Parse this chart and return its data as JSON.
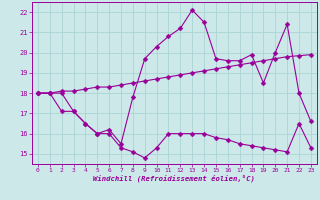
{
  "xlabel": "Windchill (Refroidissement éolien,°C)",
  "bg_color": "#cce8e8",
  "line_color": "#990099",
  "xlim": [
    -0.5,
    23.5
  ],
  "ylim": [
    14.5,
    22.5
  ],
  "xticks": [
    0,
    1,
    2,
    3,
    4,
    5,
    6,
    7,
    8,
    9,
    10,
    11,
    12,
    13,
    14,
    15,
    16,
    17,
    18,
    19,
    20,
    21,
    22,
    23
  ],
  "yticks": [
    15,
    16,
    17,
    18,
    19,
    20,
    21,
    22
  ],
  "grid_color": "#aad4d4",
  "s1_x": [
    0,
    1,
    2,
    3,
    4,
    5,
    6,
    7,
    8,
    9,
    10,
    11,
    12,
    13,
    14,
    15,
    16,
    17,
    18,
    19,
    20,
    21,
    22,
    23
  ],
  "s1_y": [
    18.0,
    18.0,
    18.0,
    17.1,
    16.5,
    16.0,
    16.0,
    15.3,
    15.1,
    14.8,
    15.3,
    16.0,
    16.0,
    16.0,
    16.0,
    15.8,
    15.7,
    15.5,
    15.4,
    15.3,
    15.2,
    15.1,
    16.5,
    15.3
  ],
  "s2_x": [
    0,
    1,
    2,
    3,
    4,
    5,
    6,
    7,
    8,
    9,
    10,
    11,
    12,
    13,
    14,
    15,
    16,
    17,
    18,
    19,
    20,
    21,
    22,
    23
  ],
  "s2_y": [
    18.0,
    18.0,
    17.1,
    17.1,
    16.5,
    16.0,
    16.2,
    15.5,
    17.8,
    19.7,
    20.3,
    20.8,
    21.2,
    22.1,
    21.5,
    19.7,
    19.6,
    19.6,
    19.9,
    18.5,
    20.0,
    21.4,
    18.0,
    16.6
  ],
  "s3_x": [
    0,
    1,
    2,
    3,
    4,
    5,
    6,
    7,
    8,
    9,
    10,
    11,
    12,
    13,
    14,
    15,
    16,
    17,
    18,
    19,
    20,
    21,
    22,
    23
  ],
  "s3_y": [
    18.0,
    18.0,
    18.1,
    18.1,
    18.2,
    18.3,
    18.3,
    18.4,
    18.5,
    18.6,
    18.7,
    18.8,
    18.9,
    19.0,
    19.1,
    19.2,
    19.3,
    19.4,
    19.5,
    19.6,
    19.7,
    19.8,
    19.85,
    19.9
  ]
}
